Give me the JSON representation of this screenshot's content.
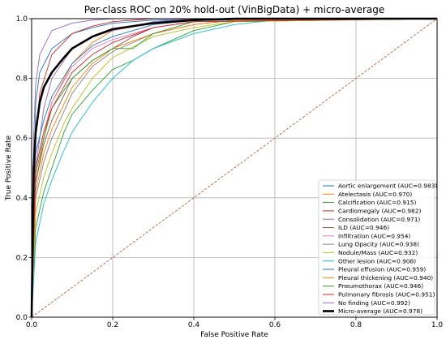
{
  "chart_data": {
    "type": "line",
    "title": "Per-class ROC on 20% hold-out (VinBigData) + micro-average",
    "xlabel": "False Positive Rate",
    "ylabel": "True Positive Rate",
    "xlim": [
      0.0,
      1.0
    ],
    "ylim": [
      0.0,
      1.0
    ],
    "xticks": [
      "0.0",
      "0.2",
      "0.4",
      "0.6",
      "0.8",
      "1.0"
    ],
    "yticks": [
      "0.0",
      "0.2",
      "0.4",
      "0.6",
      "0.8",
      "1.0"
    ],
    "grid": true,
    "legend_position": "lower-right",
    "series": [
      {
        "name": "Aortic enlargement (AUC=0.983)",
        "color": "#1f77b4",
        "x": [
          0,
          0.01,
          0.02,
          0.05,
          0.1,
          0.15,
          0.2,
          0.3,
          0.5,
          1.0
        ],
        "y": [
          0,
          0.72,
          0.82,
          0.9,
          0.95,
          0.97,
          0.985,
          0.995,
          1.0,
          1.0
        ]
      },
      {
        "name": "Atelectasis (AUC=0.970)",
        "color": "#ff7f0e",
        "x": [
          0,
          0.01,
          0.03,
          0.05,
          0.1,
          0.15,
          0.2,
          0.3,
          0.4,
          1.0
        ],
        "y": [
          0,
          0.45,
          0.6,
          0.72,
          0.85,
          0.92,
          0.96,
          0.985,
          1.0,
          1.0
        ]
      },
      {
        "name": "Calcification (AUC=0.915)",
        "color": "#2ca02c",
        "x": [
          0,
          0.01,
          0.03,
          0.05,
          0.08,
          0.1,
          0.15,
          0.2,
          0.25,
          0.3,
          0.4,
          0.5,
          1.0
        ],
        "y": [
          0,
          0.3,
          0.42,
          0.5,
          0.62,
          0.68,
          0.76,
          0.83,
          0.86,
          0.9,
          0.96,
          0.99,
          1.0
        ]
      },
      {
        "name": "Cardiomegaly (AUC=0.982)",
        "color": "#d62728",
        "x": [
          0,
          0.01,
          0.02,
          0.05,
          0.1,
          0.15,
          0.2,
          0.3,
          1.0
        ],
        "y": [
          0,
          0.6,
          0.75,
          0.88,
          0.95,
          0.975,
          0.99,
          1.0,
          1.0
        ]
      },
      {
        "name": "Consolidation (AUC=0.971)",
        "color": "#9467bd",
        "x": [
          0,
          0.01,
          0.03,
          0.05,
          0.1,
          0.15,
          0.2,
          0.3,
          0.4,
          1.0
        ],
        "y": [
          0,
          0.5,
          0.7,
          0.8,
          0.9,
          0.94,
          0.96,
          0.99,
          1.0,
          1.0
        ]
      },
      {
        "name": "ILD (AUC=0.946)",
        "color": "#8c564b",
        "x": [
          0,
          0.01,
          0.03,
          0.05,
          0.1,
          0.15,
          0.2,
          0.25,
          0.3,
          0.4,
          1.0
        ],
        "y": [
          0,
          0.45,
          0.58,
          0.66,
          0.8,
          0.86,
          0.9,
          0.94,
          0.97,
          0.99,
          1.0
        ]
      },
      {
        "name": "Infiltration (AUC=0.954)",
        "color": "#e377c2",
        "x": [
          0,
          0.01,
          0.03,
          0.05,
          0.1,
          0.15,
          0.2,
          0.3,
          0.4,
          1.0
        ],
        "y": [
          0,
          0.5,
          0.62,
          0.72,
          0.84,
          0.9,
          0.93,
          0.97,
          0.99,
          1.0
        ]
      },
      {
        "name": "Lung Opacity (AUC=0.938)",
        "color": "#7f7f7f",
        "x": [
          0,
          0.01,
          0.03,
          0.05,
          0.1,
          0.15,
          0.2,
          0.3,
          0.4,
          0.5,
          1.0
        ],
        "y": [
          0,
          0.4,
          0.52,
          0.6,
          0.75,
          0.84,
          0.89,
          0.95,
          0.98,
          0.995,
          1.0
        ]
      },
      {
        "name": "Nodule/Mass (AUC=0.932)",
        "color": "#bcbd22",
        "x": [
          0,
          0.01,
          0.03,
          0.05,
          0.08,
          0.1,
          0.15,
          0.2,
          0.3,
          0.4,
          0.5,
          1.0
        ],
        "y": [
          0,
          0.35,
          0.47,
          0.55,
          0.65,
          0.7,
          0.8,
          0.87,
          0.94,
          0.97,
          0.99,
          1.0
        ]
      },
      {
        "name": "Other lesion (AUC=0.908)",
        "color": "#17becf",
        "x": [
          0,
          0.01,
          0.03,
          0.05,
          0.08,
          0.1,
          0.15,
          0.2,
          0.25,
          0.3,
          0.4,
          0.5,
          0.6,
          1.0
        ],
        "y": [
          0,
          0.25,
          0.38,
          0.46,
          0.56,
          0.62,
          0.72,
          0.8,
          0.86,
          0.9,
          0.95,
          0.98,
          0.995,
          1.0
        ]
      },
      {
        "name": "Pleural effusion (AUC=0.959)",
        "color": "#1f77b4",
        "x": [
          0,
          0.01,
          0.03,
          0.05,
          0.1,
          0.15,
          0.2,
          0.3,
          0.4,
          1.0
        ],
        "y": [
          0,
          0.55,
          0.66,
          0.74,
          0.85,
          0.91,
          0.94,
          0.98,
          0.995,
          1.0
        ]
      },
      {
        "name": "Pleural thickening (AUC=0.940)",
        "color": "#ff7f0e",
        "x": [
          0,
          0.01,
          0.03,
          0.05,
          0.1,
          0.15,
          0.2,
          0.3,
          0.4,
          0.5,
          1.0
        ],
        "y": [
          0,
          0.42,
          0.55,
          0.63,
          0.77,
          0.85,
          0.9,
          0.95,
          0.98,
          0.995,
          1.0
        ]
      },
      {
        "name": "Pneumothorax (AUC=0.946)",
        "color": "#2ca02c",
        "x": [
          0,
          0.01,
          0.03,
          0.05,
          0.1,
          0.15,
          0.2,
          0.25,
          0.3,
          0.4,
          1.0
        ],
        "y": [
          0,
          0.48,
          0.6,
          0.7,
          0.8,
          0.86,
          0.9,
          0.9,
          0.95,
          0.99,
          1.0
        ]
      },
      {
        "name": "Pulmonary fibrosis (AUC=0.951)",
        "color": "#d62728",
        "x": [
          0,
          0.01,
          0.03,
          0.05,
          0.1,
          0.15,
          0.2,
          0.3,
          0.4,
          1.0
        ],
        "y": [
          0,
          0.5,
          0.62,
          0.7,
          0.82,
          0.88,
          0.92,
          0.97,
          0.99,
          1.0
        ]
      },
      {
        "name": "No finding (AUC=0.992)",
        "color": "#9467bd",
        "x": [
          0,
          0.005,
          0.01,
          0.02,
          0.05,
          0.1,
          0.15,
          0.2,
          1.0
        ],
        "y": [
          0,
          0.6,
          0.78,
          0.88,
          0.96,
          0.985,
          0.995,
          1.0,
          1.0
        ]
      },
      {
        "name": "Micro-average (AUC=0.978)",
        "color": "#000000",
        "x": [
          0,
          0.005,
          0.01,
          0.02,
          0.03,
          0.05,
          0.08,
          0.1,
          0.15,
          0.2,
          0.3,
          0.4,
          0.5,
          1.0
        ],
        "y": [
          0,
          0.5,
          0.62,
          0.72,
          0.77,
          0.82,
          0.87,
          0.9,
          0.94,
          0.965,
          0.985,
          0.995,
          1.0,
          1.0
        ],
        "bold": true
      }
    ],
    "diagonal": {
      "x": [
        0,
        1
      ],
      "y": [
        0,
        1
      ],
      "color": "#a0522d",
      "style": "dashed"
    }
  }
}
